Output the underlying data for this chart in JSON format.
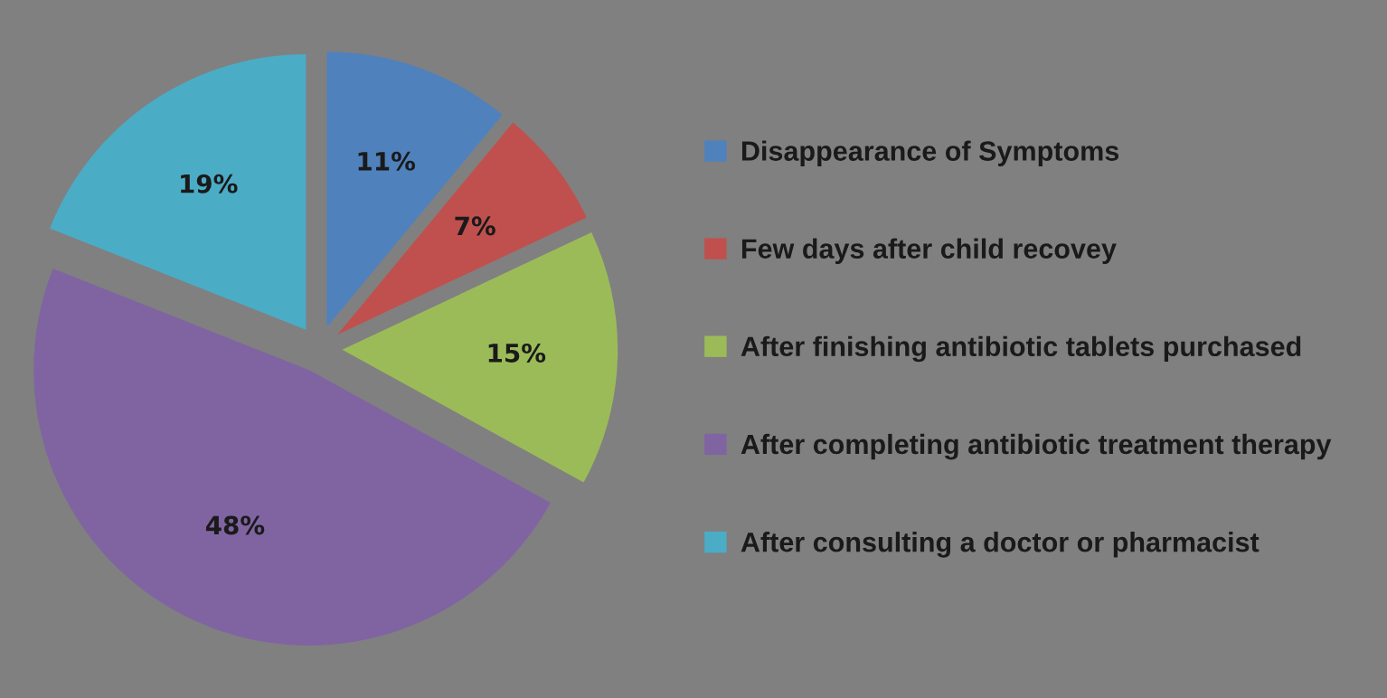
{
  "chart_data": {
    "type": "pie",
    "categories": [
      "Disappearance of Symptoms",
      "Few days after child recovey",
      "After finishing antibiotic tablets purchased",
      "After completing antibiotic treatment therapy",
      "After consulting a doctor or pharmacist"
    ],
    "values": [
      11,
      7,
      15,
      48,
      19
    ],
    "colors": [
      "#4f81bd",
      "#c0504d",
      "#9bbb59",
      "#8064a2",
      "#4bacc6"
    ],
    "value_labels": [
      "11%",
      "7%",
      "15%",
      "48%",
      "19%"
    ],
    "legend": "right"
  }
}
